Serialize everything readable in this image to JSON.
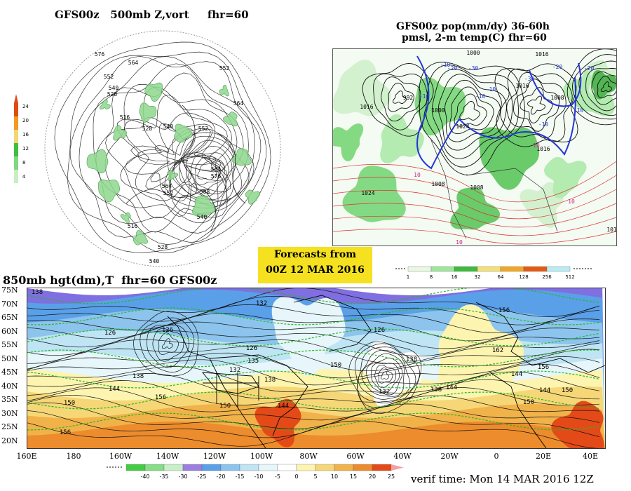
{
  "top_left": {
    "title": "GFS00z   500mb Z,vort     fhr=60",
    "contour_labels": [
      "576",
      "564",
      "552",
      "540",
      "528",
      "516",
      "528",
      "540",
      "552",
      "564",
      "576",
      "588",
      "564",
      "552",
      "540",
      "516",
      "528",
      "540",
      "552",
      "564"
    ],
    "colorbar": {
      "labels": [
        "24",
        "20",
        "16",
        "12",
        "8",
        "4"
      ],
      "colors": [
        "#e04b12",
        "#f39a1f",
        "#f3d774",
        "#3fbf3f",
        "#7fd97f",
        "#c6efc2"
      ]
    }
  },
  "top_right": {
    "title_line1": "GFS00z pop(mm/dy) 36-60h",
    "title_line2": "pmsl, 2-m temp(C)   fhr=60",
    "labels_black": [
      "1000",
      "1016",
      "1008",
      "1016",
      "1024",
      "1000",
      "1016",
      "1016",
      "1008",
      "1024",
      "992",
      "1016",
      "1008"
    ],
    "labels_blue": [
      "-20",
      "-30",
      "-10",
      "-10",
      "-20",
      "-30",
      "-10",
      "-10",
      "-20",
      "-10",
      "-10"
    ],
    "labels_magenta": [
      "10",
      "10",
      "10",
      "10"
    ],
    "colorbar": {
      "labels": [
        "1",
        "8",
        "16",
        "32",
        "64",
        "128",
        "256",
        "512"
      ],
      "colors": [
        "#e8f8e2",
        "#9ee69a",
        "#3dbb3d",
        "#f3e07a",
        "#f1a625",
        "#e45a12",
        "#b8ecf3"
      ]
    }
  },
  "forecast_box": {
    "line1": "Forecasts from",
    "line2": "00Z 12 MAR 2016"
  },
  "bottom": {
    "title": "850mb hgt(dm),T  fhr=60 GFS00z",
    "lat_labels": [
      "75N",
      "70N",
      "65N",
      "60N",
      "55N",
      "50N",
      "45N",
      "40N",
      "35N",
      "30N",
      "25N",
      "20N"
    ],
    "lon_labels": [
      "160E",
      "180",
      "160W",
      "140W",
      "120W",
      "100W",
      "80W",
      "60W",
      "40W",
      "20W",
      "0",
      "20E",
      "40E"
    ],
    "contour_labels": [
      "138",
      "126",
      "138",
      "144",
      "150",
      "156",
      "156",
      "132",
      "126",
      "135",
      "138",
      "144",
      "150",
      "126",
      "132",
      "138",
      "150",
      "132",
      "138",
      "144",
      "156",
      "162",
      "144",
      "150",
      "156",
      "144",
      "150",
      "126"
    ],
    "colorbar": {
      "labels": [
        "-40",
        "-35",
        "-30",
        "-25",
        "-20",
        "-15",
        "-10",
        "-5",
        "0",
        "5",
        "10",
        "15",
        "20",
        "25"
      ],
      "colors": [
        "#44cc44",
        "#88dd88",
        "#c8f0c8",
        "#9a7fe0",
        "#5aa0e8",
        "#8cc4ee",
        "#bfe4f4",
        "#e6f6fa",
        "#ffffff",
        "#fdf4b0",
        "#f6d777",
        "#f1b24a",
        "#ec8c2c",
        "#e44a18",
        "#f5a0a0"
      ]
    },
    "verif_time": "verif time: Mon 14 MAR 2016 12Z"
  }
}
